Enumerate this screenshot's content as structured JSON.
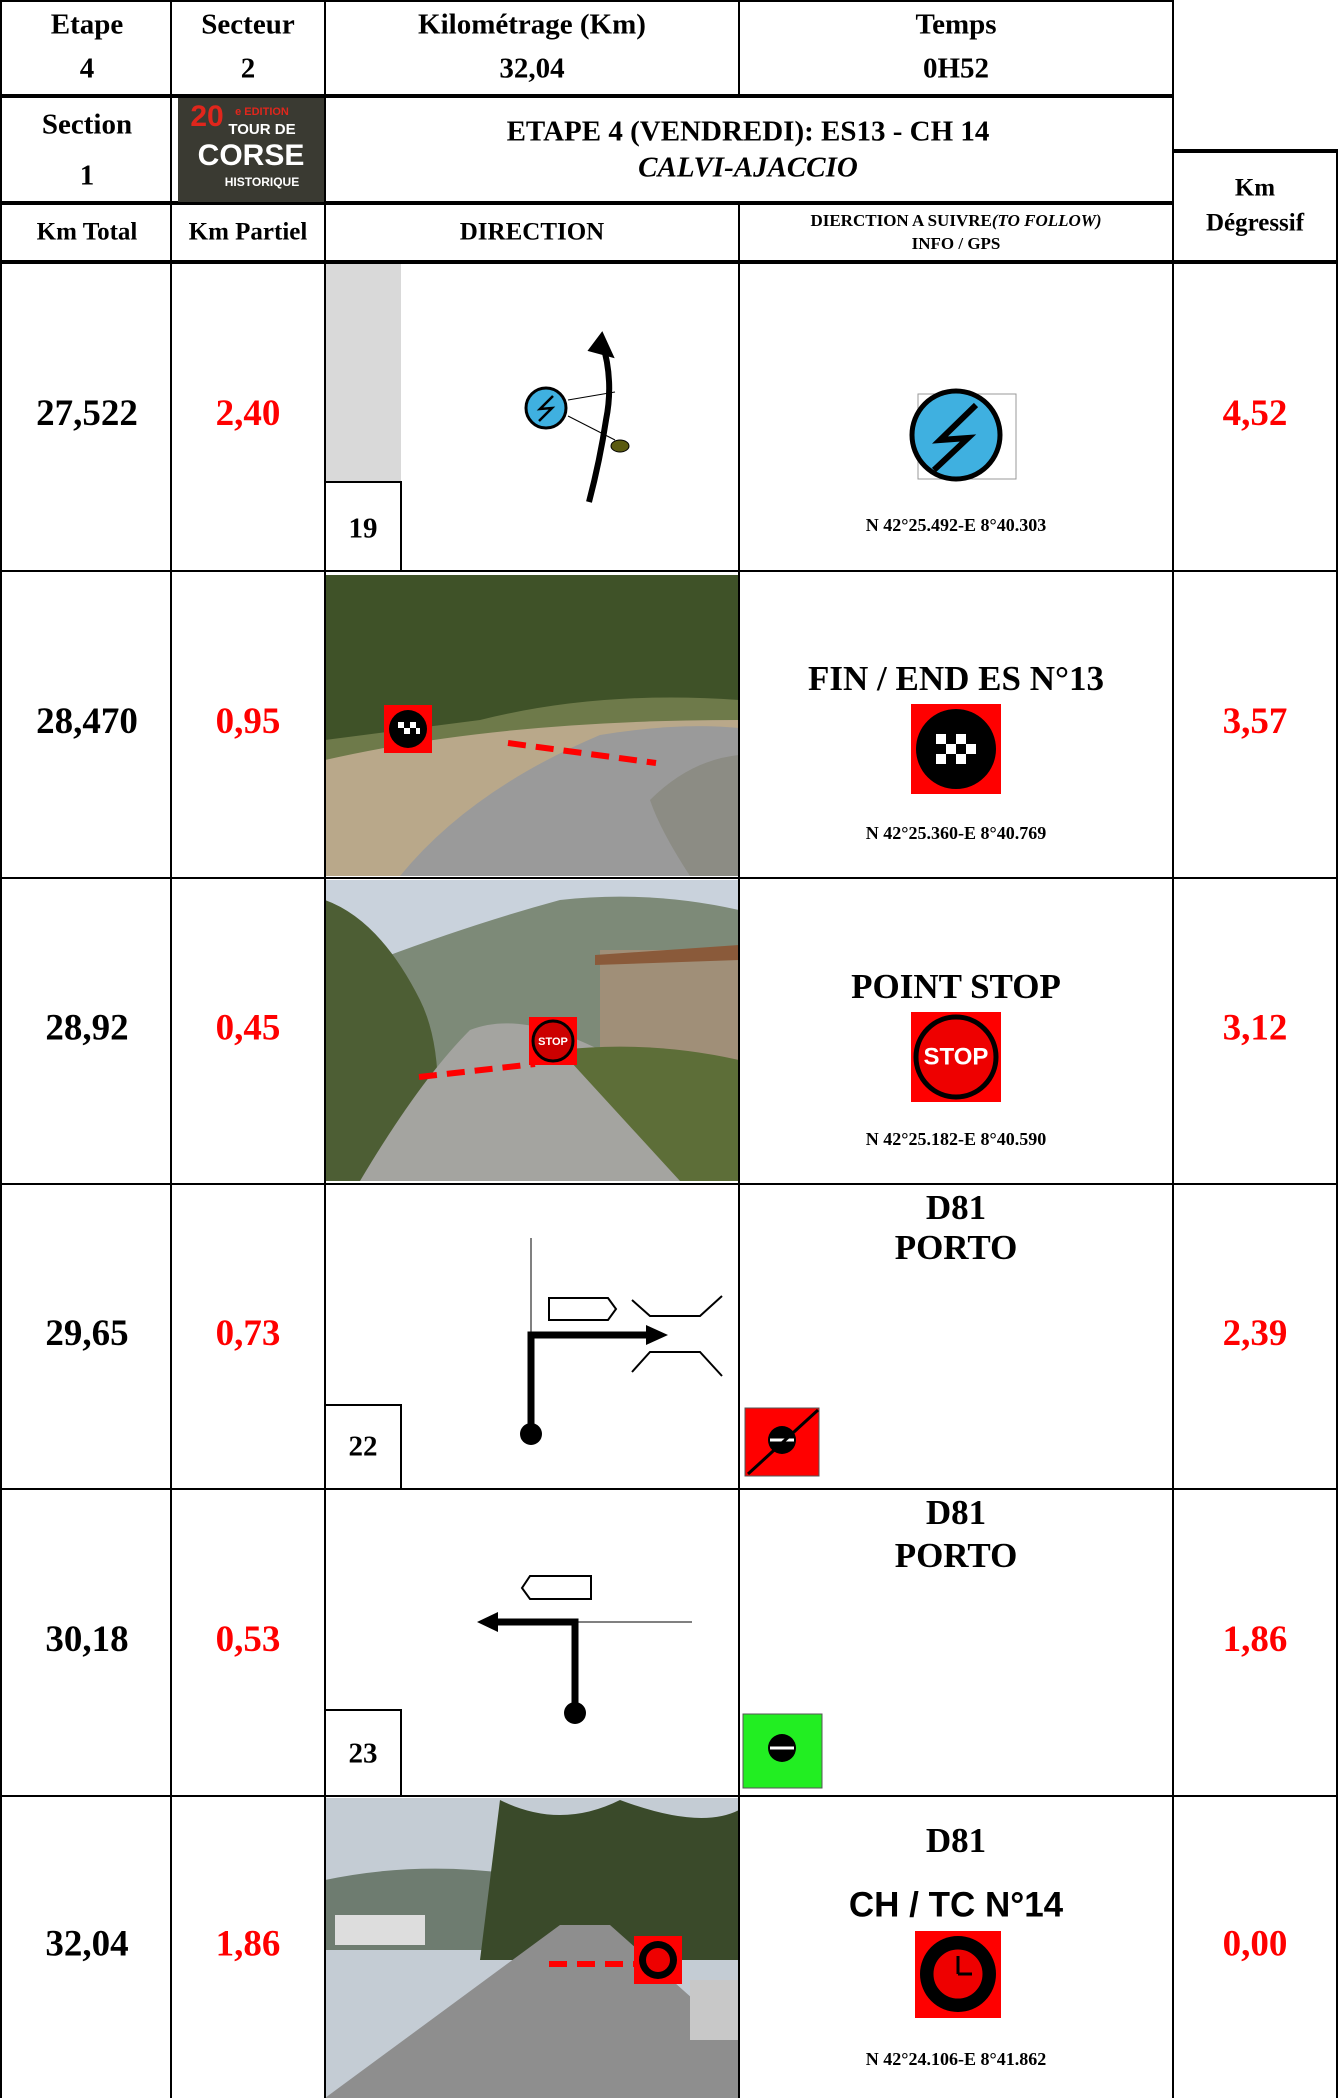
{
  "header": {
    "etape_label": "Etape",
    "etape": "4",
    "secteur_label": "Secteur",
    "secteur": "2",
    "km_label": "Kilométrage (Km)",
    "km": "32,04",
    "temps_label": "Temps",
    "temps": "0H52",
    "section_label": "Section",
    "section": "1",
    "title": "ETAPE 4 (VENDREDI): ES13 - CH 14",
    "subtitle": "CALVI-AJACCIO"
  },
  "logo": {
    "number": "20",
    "edition": "e EDITION",
    "line1": "TOUR DE",
    "line2": "CORSE",
    "line3": "HISTORIQUE"
  },
  "columns": {
    "km_total": "Km Total",
    "km_partiel": "Km Partiel",
    "direction": "DIRECTION",
    "follow": "DIERCTION A SUIVRE",
    "follow_en": "(TO FOLLOW)",
    "info": "INFO / GPS",
    "km_deg_1": "Km",
    "km_deg_2": "Dégressif"
  },
  "rows": [
    {
      "km_total": "27,522",
      "km_partiel": "2,40",
      "km_degressif": "4,52",
      "box": "19",
      "gps": "N 42°25.492-E  8°40.303"
    },
    {
      "km_total": "28,470",
      "km_partiel": "0,95",
      "km_degressif": "3,57",
      "info": [
        "FIN / END ES N°13"
      ],
      "gps": "N 42°25.360-E  8°40.769"
    },
    {
      "km_total": "28,92",
      "km_partiel": "0,45",
      "km_degressif": "3,12",
      "info": [
        "POINT STOP"
      ],
      "sign": "STOP",
      "gps": "N 42°25.182-E  8°40.590"
    },
    {
      "km_total": "29,65",
      "km_partiel": "0,73",
      "km_degressif": "2,39",
      "box": "22",
      "info": [
        "D81",
        "PORTO"
      ]
    },
    {
      "km_total": "30,18",
      "km_partiel": "0,53",
      "km_degressif": "1,86",
      "box": "23",
      "info": [
        "D81",
        "PORTO"
      ]
    },
    {
      "km_total": "32,04",
      "km_partiel": "1,86",
      "km_degressif": "0,00",
      "info": [
        "D81",
        "CH / TC N°14"
      ],
      "gps": "N 42°24.106-E  8°41.862"
    }
  ]
}
